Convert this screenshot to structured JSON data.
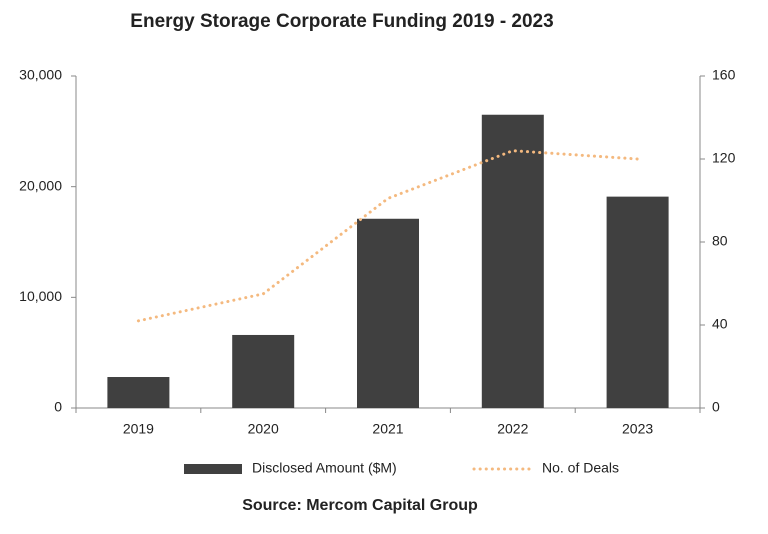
{
  "chart_data": {
    "type": "combo",
    "title": "Energy Storage Corporate Funding 2019 - 2023",
    "source": "Source: Mercom Capital Group",
    "categories": [
      "2019",
      "2020",
      "2021",
      "2022",
      "2023"
    ],
    "series": [
      {
        "name": "Disclosed Amount ($M)",
        "type": "bar",
        "color": "#404040",
        "values": [
          2800,
          6600,
          17100,
          26500,
          19100
        ]
      },
      {
        "name": "No. of Deals",
        "type": "line",
        "axis": "y2",
        "color": "#f4b97f",
        "values": [
          42,
          55,
          101,
          124,
          120
        ]
      }
    ],
    "ylim": [
      0,
      30000
    ],
    "yticks": [
      0,
      {
        "value": 10000,
        "label": "10,000"
      },
      {
        "value": 20000,
        "label": "20,000"
      },
      {
        "value": 30000,
        "label": "30,000"
      }
    ],
    "y2lim": [
      0,
      160
    ],
    "y2ticks": [
      0,
      40,
      80,
      120,
      160
    ],
    "grid": false,
    "legend": "bottom"
  }
}
